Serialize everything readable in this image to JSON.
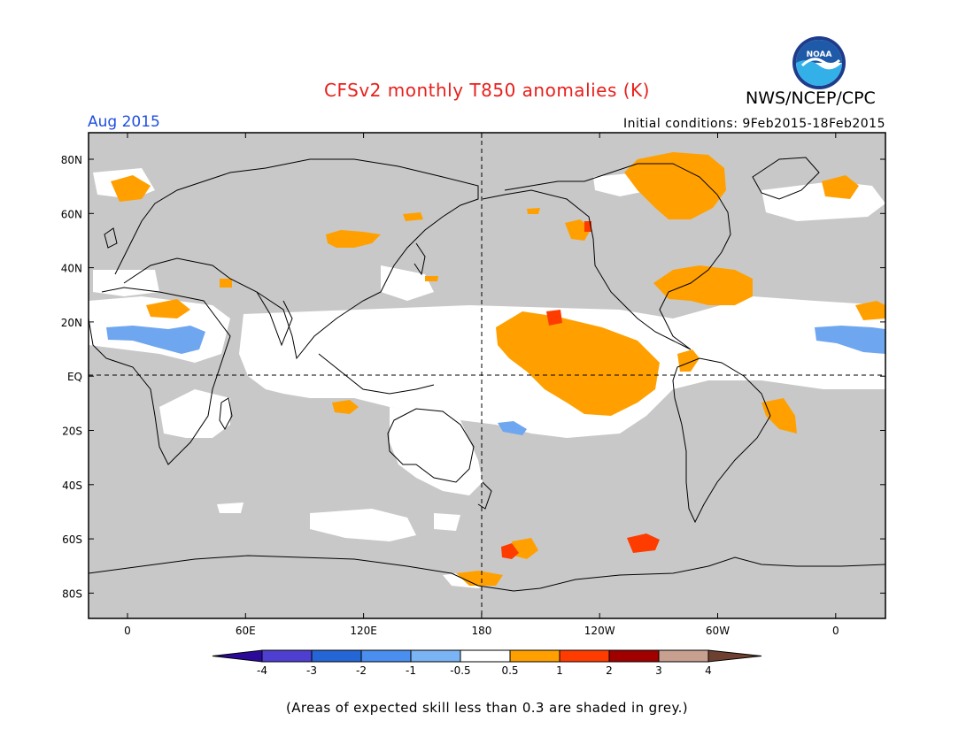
{
  "header": {
    "title": "CFSv2 monthly T850 anomalies (K)",
    "org": "NWS/NCEP/CPC",
    "period": "Aug 2015",
    "initial_conditions": "Initial conditions: 9Feb2015-18Feb2015",
    "logo_text": "NOAA"
  },
  "map": {
    "lat_labels": [
      "80N",
      "60N",
      "40N",
      "20N",
      "EQ",
      "20S",
      "40S",
      "60S",
      "80S"
    ],
    "lon_labels": [
      "0",
      "60E",
      "120E",
      "180",
      "120W",
      "60W",
      "0"
    ],
    "colors": {
      "grey": "#c8c8c8",
      "white": "#ffffff",
      "orange": "#ffa000",
      "red_orange": "#ff3c00",
      "light_blue": "#6ea6f0"
    }
  },
  "colorbar": {
    "tick_labels": [
      "-4",
      "-3",
      "-2",
      "-1",
      "-0.5",
      "0.5",
      "1",
      "2",
      "3",
      "4"
    ],
    "colors": [
      "#2b0a9a",
      "#4e3fd0",
      "#2566d6",
      "#4a8ff0",
      "#7ab4f5",
      "#ffffff",
      "#ffa000",
      "#ff3c00",
      "#a00000",
      "#c8a090",
      "#6e4030"
    ]
  },
  "footnote": "(Areas of expected skill less than 0.3 are shaded in grey.)"
}
